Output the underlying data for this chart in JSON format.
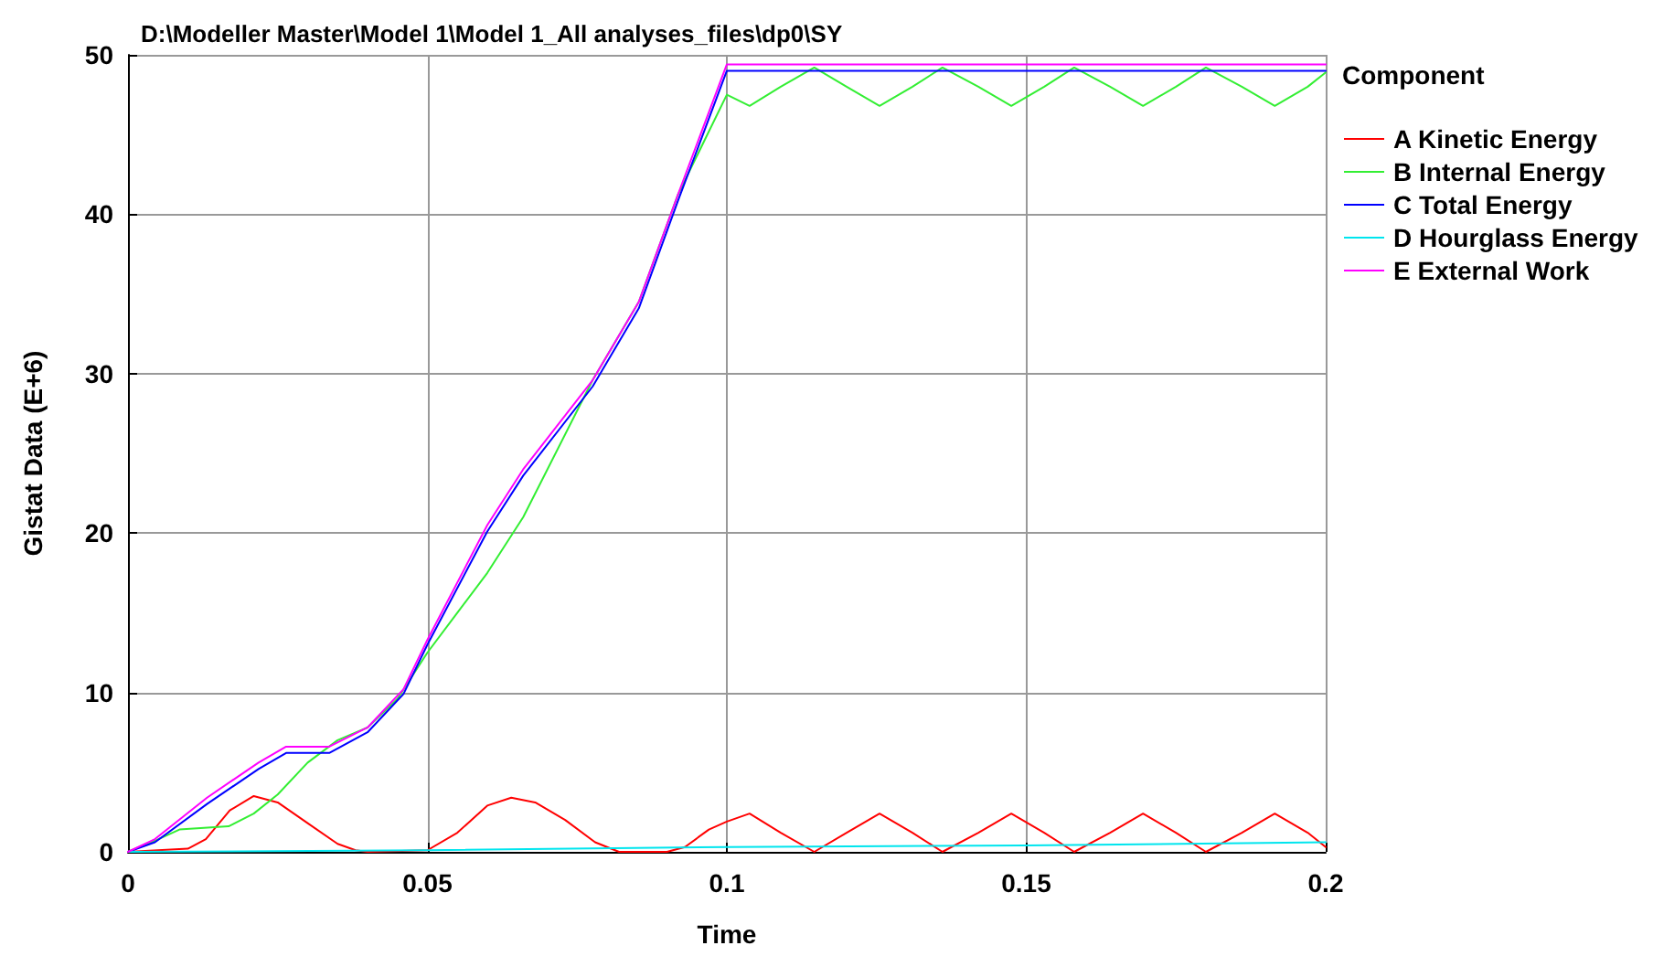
{
  "chart_data": {
    "type": "line",
    "title": "D:\\Modeller Master\\Model 1\\Model 1_All analyses_files\\dp0\\SY",
    "xlabel": "Time",
    "ylabel": "Gistat Data (E+6)",
    "legend_title": "Component",
    "legend": "right",
    "grid": true,
    "marker": "none",
    "line_style": "solid",
    "xlim": [
      0,
      0.2
    ],
    "xticks": [
      0,
      0.05,
      0.1,
      0.15,
      0.2
    ],
    "ylim": [
      0,
      50
    ],
    "yticks": [
      0,
      10,
      20,
      30,
      40,
      50
    ],
    "series": [
      {
        "name": "A Kinetic Energy",
        "color": "#ff0000",
        "x": [
          0,
          0.01,
          0.013,
          0.017,
          0.021,
          0.025,
          0.03,
          0.035,
          0.038,
          0.04,
          0.05,
          0.055,
          0.06,
          0.064,
          0.068,
          0.073,
          0.078,
          0.082,
          0.09,
          0.093,
          0.097,
          0.1,
          0.1038,
          0.109,
          0.1146,
          0.12,
          0.1255,
          0.131,
          0.136,
          0.142,
          0.1475,
          0.153,
          0.158,
          0.164,
          0.1695,
          0.175,
          0.18,
          0.186,
          0.1915,
          0.197,
          0.2
        ],
        "values": [
          0,
          0.2,
          0.8,
          2.6,
          3.5,
          3.1,
          1.8,
          0.5,
          0.1,
          0,
          0.1,
          1.2,
          2.9,
          3.4,
          3.1,
          2,
          0.6,
          0,
          0,
          0.3,
          1.4,
          1.9,
          2.4,
          1.2,
          0,
          1.2,
          2.4,
          1.2,
          0,
          1.2,
          2.4,
          1.2,
          0,
          1.2,
          2.4,
          1.2,
          0,
          1.2,
          2.4,
          1.2,
          0.3
        ]
      },
      {
        "name": "B Internal Energy",
        "color": "#33ee33",
        "x": [
          0,
          0.0045,
          0.0086,
          0.0168,
          0.021,
          0.025,
          0.03,
          0.035,
          0.04,
          0.045,
          0.05,
          0.055,
          0.06,
          0.066,
          0.0776,
          0.0853,
          0.0918,
          0.1,
          0.1038,
          0.109,
          0.1146,
          0.12,
          0.1255,
          0.131,
          0.136,
          0.142,
          0.1475,
          0.153,
          0.158,
          0.164,
          0.1695,
          0.175,
          0.18,
          0.186,
          0.1915,
          0.197,
          0.2
        ],
        "values": [
          0,
          0.7,
          1.4,
          1.6,
          2.4,
          3.6,
          5.6,
          7,
          7.8,
          9.6,
          12.5,
          15,
          17.5,
          21,
          29.6,
          34.5,
          41.2,
          47.5,
          46.8,
          48,
          49.2,
          48,
          46.8,
          48,
          49.2,
          48,
          46.8,
          48,
          49.2,
          48,
          46.8,
          48,
          49.2,
          48,
          46.8,
          48,
          48.9
        ]
      },
      {
        "name": "C Total Energy",
        "color": "#0000ff",
        "x": [
          0,
          0.0045,
          0.0132,
          0.0218,
          0.0264,
          0.0336,
          0.04,
          0.046,
          0.05,
          0.06,
          0.066,
          0.0776,
          0.0853,
          0.0918,
          0.1,
          0.2
        ],
        "values": [
          0,
          0.6,
          3,
          5.2,
          6.2,
          6.2,
          7.5,
          9.9,
          13,
          20.1,
          23.6,
          29.2,
          34.1,
          40.8,
          49,
          49
        ]
      },
      {
        "name": "D Hourglass Energy",
        "color": "#00e5ee",
        "x": [
          0,
          0.05,
          0.1,
          0.15,
          0.2
        ],
        "values": [
          0,
          0.1,
          0.3,
          0.4,
          0.6
        ]
      },
      {
        "name": "E External Work",
        "color": "#ff00ff",
        "x": [
          0,
          0.0045,
          0.0132,
          0.0218,
          0.0264,
          0.0336,
          0.04,
          0.046,
          0.05,
          0.06,
          0.066,
          0.0776,
          0.0853,
          0.0918,
          0.1,
          0.2
        ],
        "values": [
          0,
          0.8,
          3.4,
          5.6,
          6.6,
          6.6,
          7.8,
          10.2,
          13.3,
          20.5,
          24,
          29.6,
          34.5,
          41.2,
          49.4,
          49.4
        ]
      }
    ]
  }
}
